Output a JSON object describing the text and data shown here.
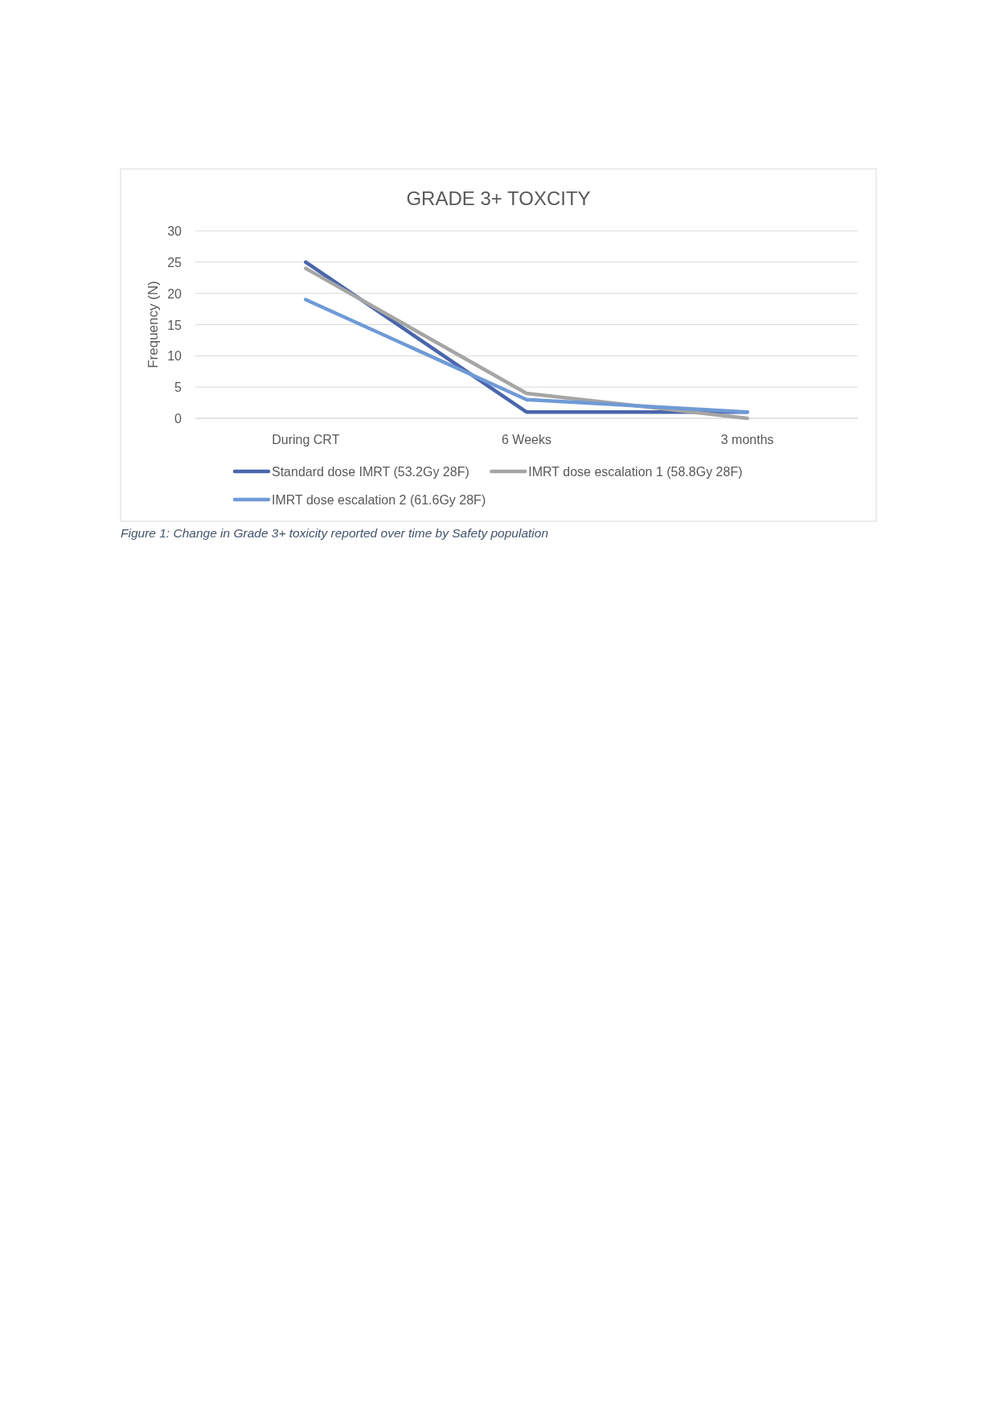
{
  "chart_data": {
    "type": "line",
    "title": "GRADE 3+ TOXCITY",
    "ylabel": "Frequency (N)",
    "categories": [
      "During CRT",
      "6 Weeks",
      "3 months"
    ],
    "series": [
      {
        "name": "Standard dose IMRT (53.2Gy 28F)",
        "color": "#4a66ac",
        "values": [
          25,
          1,
          1
        ]
      },
      {
        "name": "IMRT dose escalation 1 (58.8Gy 28F)",
        "color": "#a5a5a5",
        "values": [
          24,
          4,
          0
        ]
      },
      {
        "name": "IMRT dose escalation 2 (61.6Gy 28F)",
        "color": "#6f9ad6",
        "values": [
          19,
          3,
          1
        ]
      }
    ],
    "ylim": [
      0,
      30
    ],
    "yticks": [
      0,
      5,
      10,
      15,
      20,
      25,
      30
    ],
    "grid": "y",
    "legend": "bottom",
    "marker": "none",
    "annotations": [
      "Figure 1: Change in Grade 3+ toxicity reported over time by Safety population"
    ]
  }
}
